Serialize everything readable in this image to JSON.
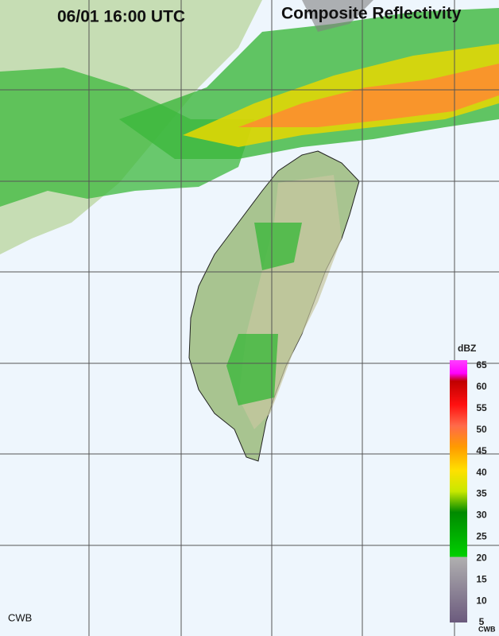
{
  "header": {
    "time": "06/01 16:00 UTC",
    "title": "Composite Reflectivity"
  },
  "legend": {
    "unit": "dBZ",
    "range": [
      5,
      65
    ],
    "ticks": [
      65,
      60,
      55,
      50,
      45,
      40,
      35,
      30,
      25,
      20,
      15,
      10,
      5
    ],
    "source": "CWB"
  },
  "footer": {
    "credit": "CWB"
  }
}
